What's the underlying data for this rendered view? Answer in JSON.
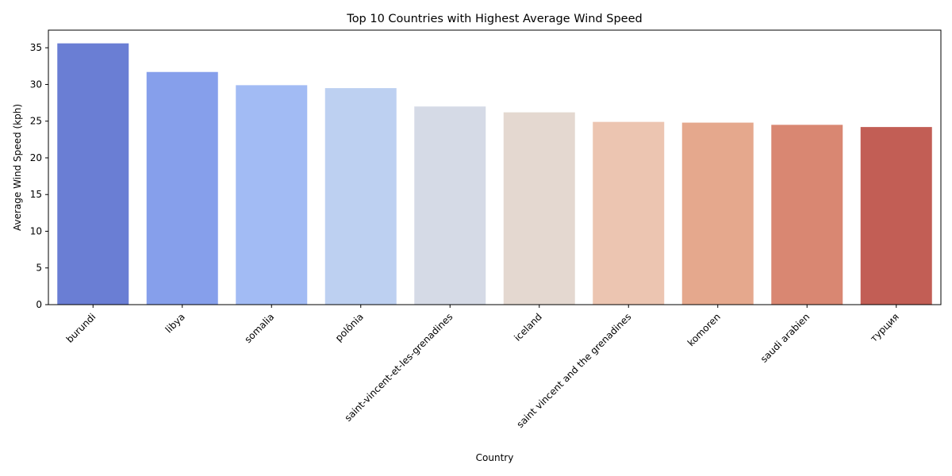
{
  "chart_data": {
    "type": "bar",
    "title": "Top 10 Countries with Highest Average Wind Speed",
    "xlabel": "Country",
    "ylabel": "Average Wind Speed (kph)",
    "ylim": [
      0,
      37.4
    ],
    "yticks": [
      0,
      5,
      10,
      15,
      20,
      25,
      30,
      35
    ],
    "categories": [
      "burundi",
      "libya",
      "somalia",
      "polônia",
      "saint-vincent-et-les-grenadines",
      "iceland",
      "saint vincent and the grenadines",
      "komoren",
      "saudi arabien",
      "турция"
    ],
    "values": [
      35.6,
      31.7,
      29.9,
      29.5,
      27.0,
      26.2,
      24.9,
      24.8,
      24.5,
      24.2
    ],
    "colors": [
      "#6a7ed4",
      "#869feb",
      "#a2bbf4",
      "#bdd0f1",
      "#d5dae6",
      "#e4d8d0",
      "#ecc5b1",
      "#e5a88d",
      "#d98772",
      "#c25e55"
    ],
    "grid": false,
    "legend": "none"
  }
}
